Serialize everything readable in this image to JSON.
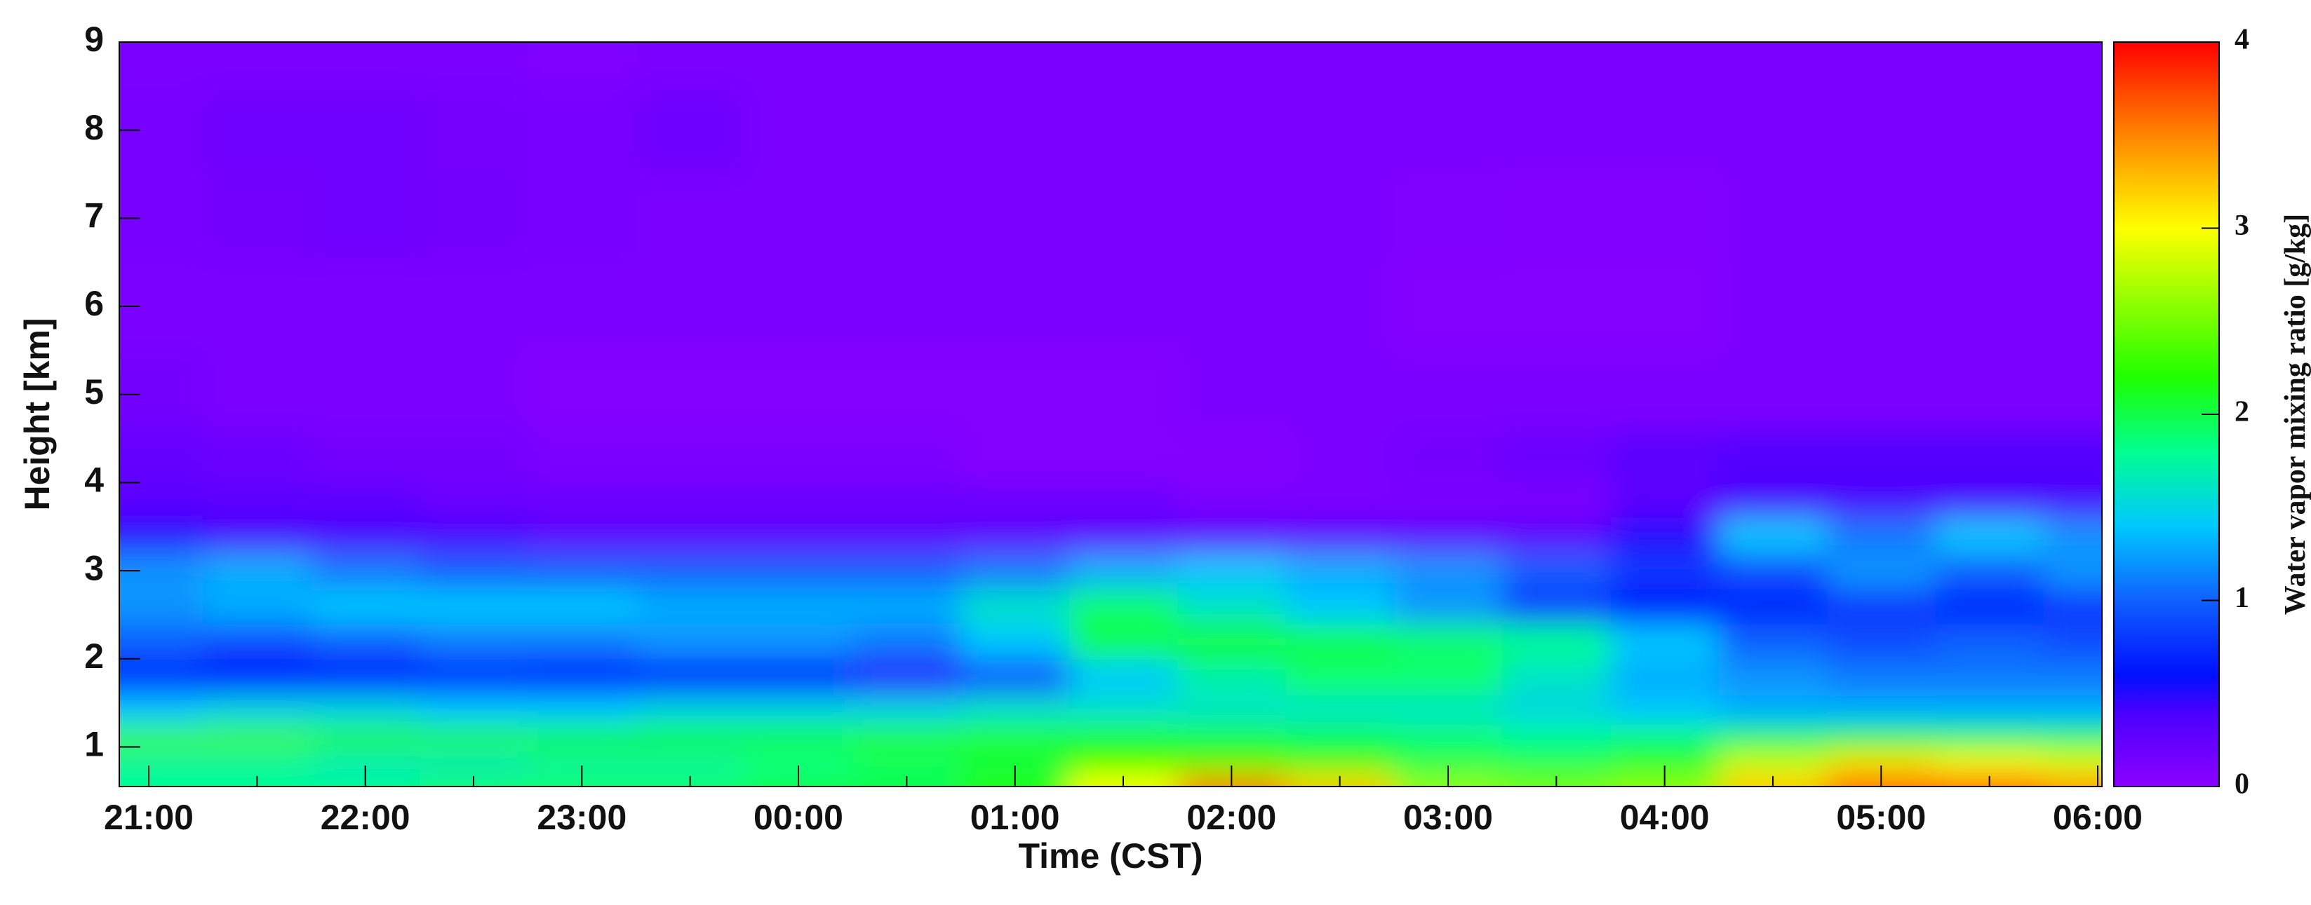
{
  "chart_data": {
    "type": "heatmap",
    "x_label": "Time (CST)",
    "y_label": "Height [km]",
    "colorbar_label": "Water vapor mixing ratio [g/kg]",
    "categories": [
      "21:00",
      null,
      "22:00",
      null,
      "23:00",
      null,
      "00:00",
      null,
      "01:00",
      null,
      "02:00",
      null,
      "03:00",
      null,
      "04:00",
      null,
      "05:00",
      null,
      "06:00"
    ],
    "y": [
      0.6,
      0.8,
      1.1,
      1.4,
      1.8,
      2.2,
      2.6,
      3.0,
      3.4,
      3.8,
      4.2,
      5,
      6,
      7,
      8,
      9
    ],
    "ylim": [
      0.55,
      9
    ],
    "yticks": [
      1,
      2,
      3,
      4,
      5,
      6,
      7,
      8,
      9
    ],
    "vlim": [
      0,
      4
    ],
    "vticks": [
      0,
      1,
      2,
      3,
      4
    ],
    "colorscale": [
      [
        0,
        "#8c00ff"
      ],
      [
        0.1,
        "#4a00ff"
      ],
      [
        0.15,
        "#0010ff"
      ],
      [
        0.25,
        "#1060ff"
      ],
      [
        0.35,
        "#00c8ff"
      ],
      [
        0.45,
        "#00ff90"
      ],
      [
        0.55,
        "#20ff00"
      ],
      [
        0.75,
        "#ffff00"
      ],
      [
        0.88,
        "#ff8000"
      ],
      [
        1,
        "#ff0000"
      ]
    ],
    "values": [
      [
        1.8,
        1.8,
        1.8,
        1.9,
        1.9,
        1.9,
        2.0,
        2.0,
        2.2,
        3.0,
        3.5,
        3.2,
        2.6,
        2.5,
        2.6,
        3.2,
        3.6,
        3.6,
        3.4
      ],
      [
        1.7,
        1.7,
        1.6,
        1.6,
        1.7,
        1.7,
        1.8,
        1.9,
        2.0,
        2.2,
        2.3,
        2.2,
        2.0,
        2.0,
        2.1,
        2.8,
        3.1,
        3.0,
        2.9
      ],
      [
        2.3,
        2.3,
        2.2,
        2.2,
        2.1,
        2.1,
        2.1,
        2.2,
        2.2,
        2.2,
        2.1,
        2.0,
        1.9,
        1.8,
        1.9,
        2.0,
        2.1,
        2.0,
        2.0
      ],
      [
        1.4,
        1.5,
        1.5,
        1.4,
        1.4,
        1.5,
        1.5,
        1.5,
        1.6,
        1.6,
        1.6,
        1.6,
        1.6,
        1.5,
        1.4,
        1.3,
        1.3,
        1.3,
        1.3
      ],
      [
        0.7,
        0.6,
        0.6,
        0.7,
        0.6,
        0.6,
        0.6,
        0.5,
        0.9,
        1.4,
        1.7,
        1.9,
        1.9,
        1.6,
        1.3,
        1.2,
        1.1,
        1.1,
        1.1
      ],
      [
        1.0,
        0.9,
        1.0,
        1.1,
        1.1,
        1.2,
        1.2,
        1.1,
        1.4,
        2.0,
        2.1,
        2.0,
        1.9,
        1.8,
        1.4,
        1.0,
        0.9,
        1.0,
        0.9
      ],
      [
        1.2,
        1.3,
        1.4,
        1.4,
        1.4,
        1.3,
        1.3,
        1.3,
        1.6,
        1.9,
        1.6,
        1.4,
        1.2,
        0.8,
        0.6,
        0.7,
        0.8,
        0.7,
        0.8
      ],
      [
        1.2,
        1.3,
        1.1,
        1.0,
        1.0,
        1.0,
        1.0,
        1.0,
        1.1,
        1.3,
        1.4,
        1.3,
        1.2,
        1.0,
        0.8,
        0.9,
        1.2,
        1.0,
        1.2
      ],
      [
        0.5,
        0.4,
        0.4,
        0.4,
        0.3,
        0.3,
        0.3,
        0.3,
        0.3,
        0.3,
        0.3,
        0.3,
        0.3,
        0.3,
        0.5,
        1.4,
        1.1,
        1.4,
        1.2
      ],
      [
        0.3,
        0.3,
        0.3,
        0.2,
        0.2,
        0.2,
        0.2,
        0.2,
        0.2,
        0.2,
        0.1,
        0.1,
        0.1,
        0.1,
        0.3,
        0.4,
        0.4,
        0.4,
        0.4
      ],
      [
        0.25,
        0.2,
        0.15,
        0.15,
        0.1,
        0.1,
        0.1,
        0.1,
        0.05,
        0.05,
        0.05,
        0.1,
        0.15,
        0.2,
        0.3,
        0.35,
        0.35,
        0.35,
        0.35
      ],
      [
        0.15,
        0.1,
        0.1,
        0.1,
        0.05,
        0.05,
        0.05,
        0.05,
        0.05,
        0.05,
        0.1,
        0.1,
        0.1,
        0.1,
        0.1,
        0.1,
        0.1,
        0.1,
        0.1
      ],
      [
        0.1,
        0.1,
        0.1,
        0.1,
        0.1,
        0.1,
        0.1,
        0.1,
        0.1,
        0.1,
        0.1,
        0.1,
        0.05,
        0.05,
        0.05,
        0.1,
        0.1,
        0.1,
        0.1
      ],
      [
        0.12,
        0.15,
        0.17,
        0.15,
        0.12,
        0.1,
        0.1,
        0.1,
        0.1,
        0.1,
        0.1,
        0.1,
        0.08,
        0.06,
        0.06,
        0.1,
        0.1,
        0.1,
        0.1
      ],
      [
        0.12,
        0.17,
        0.17,
        0.14,
        0.12,
        0.18,
        0.1,
        0.1,
        0.1,
        0.1,
        0.1,
        0.1,
        0.1,
        0.1,
        0.1,
        0.1,
        0.1,
        0.1,
        0.1
      ],
      [
        0.1,
        0.1,
        0.1,
        0.1,
        0.08,
        0.1,
        0.1,
        0.1,
        0.1,
        0.1,
        0.1,
        0.1,
        0.1,
        0.1,
        0.1,
        0.1,
        0.1,
        0.1,
        0.1
      ]
    ]
  }
}
